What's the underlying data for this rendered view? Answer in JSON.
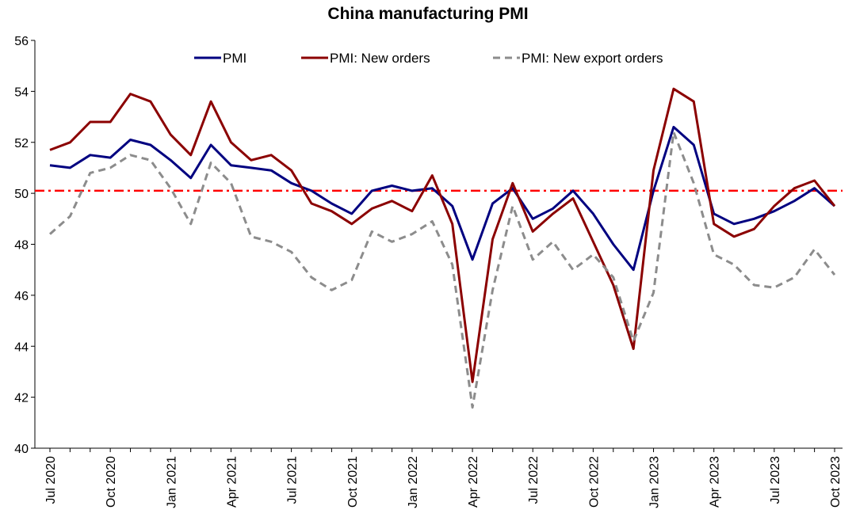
{
  "chart_data": {
    "type": "line",
    "title": "China manufacturing PMI",
    "xlabel": "",
    "ylabel": "",
    "ylim": [
      40,
      56
    ],
    "yticks": [
      40,
      42,
      44,
      46,
      48,
      50,
      52,
      54,
      56
    ],
    "x": [
      "Jul 2020",
      "Aug 2020",
      "Sep 2020",
      "Oct 2020",
      "Nov 2020",
      "Dec 2020",
      "Jan 2021",
      "Feb 2021",
      "Mar 2021",
      "Apr 2021",
      "May 2021",
      "Jun 2021",
      "Jul 2021",
      "Aug 2021",
      "Sep 2021",
      "Oct 2021",
      "Nov 2021",
      "Dec 2021",
      "Jan 2022",
      "Feb 2022",
      "Mar 2022",
      "Apr 2022",
      "May 2022",
      "Jun 2022",
      "Jul 2022",
      "Aug 2022",
      "Sep 2022",
      "Oct 2022",
      "Nov 2022",
      "Dec 2022",
      "Jan 2023",
      "Feb 2023",
      "Mar 2023",
      "Apr 2023",
      "May 2023",
      "Jun 2023",
      "Jul 2023",
      "Aug 2023",
      "Sep 2023",
      "Oct 2023"
    ],
    "x_tick_labels": [
      "Jul 2020",
      "Oct 2020",
      "Jan 2021",
      "Apr 2021",
      "Jul 2021",
      "Oct 2021",
      "Jan 2022",
      "Apr 2022",
      "Jul 2022",
      "Oct 2022",
      "Jan 2023",
      "Apr 2023",
      "Jul 2023",
      "Oct 2023"
    ],
    "series": [
      {
        "name": "PMI",
        "color": "#000080",
        "style": "solid",
        "values": [
          51.1,
          51.0,
          51.5,
          51.4,
          52.1,
          51.9,
          51.3,
          50.6,
          51.9,
          51.1,
          51.0,
          50.9,
          50.4,
          50.1,
          49.6,
          49.2,
          50.1,
          50.3,
          50.1,
          50.2,
          49.5,
          47.4,
          49.6,
          50.2,
          49.0,
          49.4,
          50.1,
          49.2,
          48.0,
          47.0,
          50.1,
          52.6,
          51.9,
          49.2,
          48.8,
          49.0,
          49.3,
          49.7,
          50.2,
          49.5
        ]
      },
      {
        "name": "PMI: New orders",
        "color": "#8B0000",
        "style": "solid",
        "values": [
          51.7,
          52.0,
          52.8,
          52.8,
          53.9,
          53.6,
          52.3,
          51.5,
          53.6,
          52.0,
          51.3,
          51.5,
          50.9,
          49.6,
          49.3,
          48.8,
          49.4,
          49.7,
          49.3,
          50.7,
          48.8,
          42.6,
          48.2,
          50.4,
          48.5,
          49.2,
          49.8,
          48.1,
          46.4,
          43.9,
          50.9,
          54.1,
          53.6,
          48.8,
          48.3,
          48.6,
          49.5,
          50.2,
          50.5,
          49.5
        ]
      },
      {
        "name": "PMI: New export orders",
        "color": "#8C8C8C",
        "style": "dashed",
        "values": [
          48.4,
          49.1,
          50.8,
          51.0,
          51.5,
          51.3,
          50.2,
          48.8,
          51.2,
          50.4,
          48.3,
          48.1,
          47.7,
          46.7,
          46.2,
          46.6,
          48.5,
          48.1,
          48.4,
          48.9,
          47.2,
          41.6,
          46.2,
          49.5,
          47.4,
          48.1,
          47.0,
          47.6,
          46.7,
          44.2,
          46.1,
          52.4,
          50.4,
          47.6,
          47.2,
          46.4,
          46.3,
          46.7,
          47.8,
          46.8
        ]
      }
    ],
    "reference_line": {
      "value": 50.1,
      "color": "#FF0000",
      "style": "dash-dot"
    },
    "grid": false,
    "legend_position": "top"
  }
}
